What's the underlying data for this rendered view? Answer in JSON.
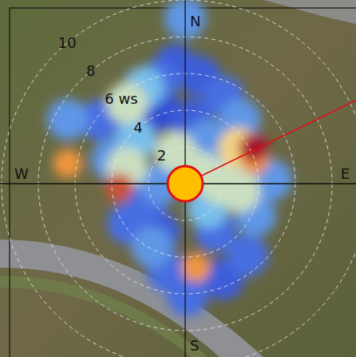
{
  "chart_data": {
    "type": "polar_heatmap",
    "direction_ticks": [
      {
        "value": 0,
        "label": "N"
      },
      {
        "value": 90,
        "label": "E"
      },
      {
        "value": 180,
        "label": "S"
      },
      {
        "value": 270,
        "label": "W"
      }
    ],
    "rlim": [
      0,
      10
    ],
    "rticks": [
      2,
      4,
      {
        "value": 6,
        "label": "6 ws"
      },
      8,
      10
    ],
    "grid": true,
    "zlim": [
      0,
      10
    ],
    "mean_direction": 64,
    "cells": {
      "direction": [
        0,
        346,
        7.6,
        23.6,
        40.4,
        62.4,
        56.5,
        87.4,
        98.4,
        71,
        340.4,
        5.7,
        27,
        311.6,
        266.5,
        285.5,
        247,
        208,
        147.7,
        114.4,
        172.9,
        191.3,
        158.2,
        178.8,
        207.7,
        343.3,
        90,
        137,
        270,
        279.7,
        298.6,
        306.8,
        324.2,
        336.6,
        139.1,
        235.2,
        71.2,
        355.4,
        288,
        50
      ],
      "ws": [
        9.0,
        5.8,
        5.9,
        5.2,
        4.6,
        4.2,
        3.5,
        4.7,
        3.0,
        2.7,
        4.2,
        3.5,
        2.7,
        3.6,
        3.6,
        3.3,
        2.2,
        3.0,
        3.1,
        4.2,
        4.6,
        4.9,
        5.6,
        6.1,
        3.9,
        1.8,
        1.9,
        1.8,
        1.4,
        6.5,
        7.3,
        5.8,
        5.4,
        5.7,
        5.2,
        3.8,
        4.0,
        6.5,
        4.2,
        1.0
      ],
      "value": [
        4,
        3,
        2,
        3,
        4,
        10,
        7,
        4,
        6,
        5,
        1,
        2,
        4,
        5,
        9,
        6,
        3,
        2,
        3,
        4,
        8,
        3,
        2,
        3,
        4,
        6,
        6,
        5,
        4,
        8,
        4,
        3,
        6,
        5,
        3,
        3,
        8,
        2,
        4,
        6
      ]
    }
  }
}
